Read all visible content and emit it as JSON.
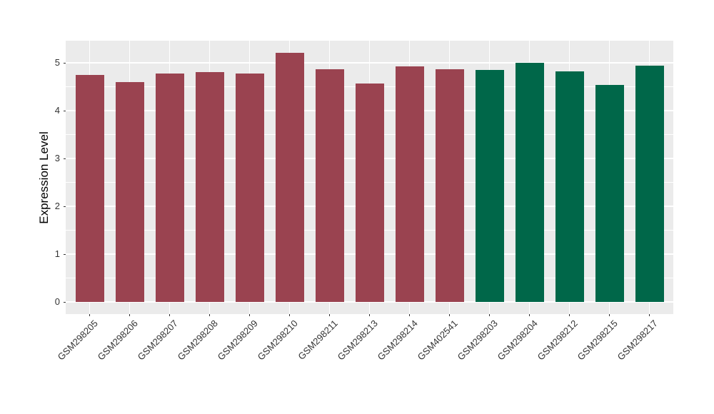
{
  "figure": {
    "background": "#FFFFFF",
    "panel_background": "#EBEBEB",
    "grid_color": "#FFFFFF",
    "tick_color": "#333333",
    "axis_text_color": "#333333",
    "axis_title_color": "#000000"
  },
  "chart_data": {
    "type": "bar",
    "title": "",
    "xlabel": "",
    "ylabel": "Expression Level",
    "categories": [
      "GSM298205",
      "GSM298206",
      "GSM298207",
      "GSM298208",
      "GSM298209",
      "GSM298210",
      "GSM298211",
      "GSM298213",
      "GSM298214",
      "GSM402541",
      "GSM298203",
      "GSM298204",
      "GSM298212",
      "GSM298215",
      "GSM298217"
    ],
    "values": [
      4.74,
      4.6,
      4.78,
      4.8,
      4.78,
      5.21,
      4.87,
      4.57,
      4.93,
      4.87,
      4.85,
      5.0,
      4.82,
      4.53,
      4.94
    ],
    "bar_groups": [
      0,
      0,
      0,
      0,
      0,
      0,
      0,
      0,
      0,
      0,
      1,
      1,
      1,
      1,
      1
    ],
    "group_colors": [
      "#9A4350",
      "#006749"
    ],
    "yticks": [
      0,
      1,
      2,
      3,
      4,
      5
    ],
    "yticks_minor": [
      0.5,
      1.5,
      2.5,
      3.5,
      4.5
    ],
    "ylim": [
      -0.26,
      5.48
    ],
    "grid": true,
    "legend": "none"
  }
}
